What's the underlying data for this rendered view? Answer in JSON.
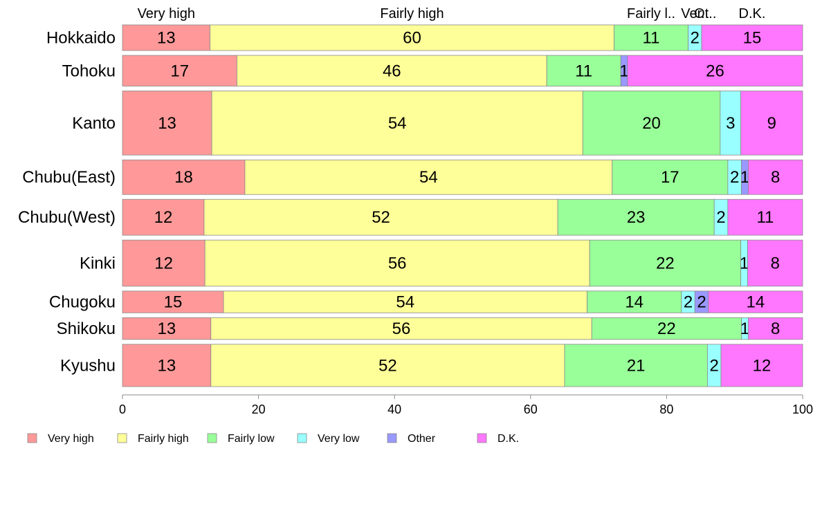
{
  "chart_data": {
    "type": "bar",
    "orientation": "horizontal",
    "stacked": true,
    "title": "",
    "xlabel": "",
    "ylabel": "",
    "xlim": [
      0,
      100
    ],
    "x_ticks": [
      0,
      20,
      40,
      60,
      80,
      100
    ],
    "grid": false,
    "legend_position": "bottom",
    "categories": [
      "Hokkaido",
      "Tohoku",
      "Kanto",
      "Chubu(East)",
      "Chubu(West)",
      "Kinki",
      "Chugoku",
      "Shikoku",
      "Kyushu"
    ],
    "relative_widths": [
      1.0,
      1.2,
      2.5,
      1.35,
      1.4,
      1.8,
      0.85,
      0.85,
      1.65
    ],
    "series": [
      {
        "name": "Very high",
        "color": "#FF9999",
        "values": [
          13,
          17,
          13,
          18,
          12,
          12,
          15,
          13,
          13
        ],
        "labels": [
          "13",
          "17",
          "13",
          "18",
          "12",
          "12",
          "15",
          "13",
          "13"
        ]
      },
      {
        "name": "Fairly high",
        "color": "#FFFF99",
        "values": [
          60,
          46,
          54,
          54,
          52,
          56,
          54,
          56,
          52
        ],
        "labels": [
          "60",
          "46",
          "54",
          "54",
          "52",
          "56",
          "54",
          "56",
          "52"
        ]
      },
      {
        "name": "Fairly low",
        "color": "#99FF99",
        "values": [
          11,
          11,
          20,
          17,
          23,
          22,
          14,
          22,
          21
        ],
        "labels": [
          "11",
          "11",
          "20",
          "17",
          "23",
          "22",
          "14",
          "22",
          "21"
        ]
      },
      {
        "name": "Very low",
        "color": "#99FFFF",
        "values": [
          2,
          0,
          3,
          2,
          2,
          1,
          2,
          1,
          2
        ],
        "labels": [
          "2",
          "",
          "3",
          "2",
          "2",
          "1",
          "2",
          "1",
          "2"
        ]
      },
      {
        "name": "Other",
        "color": "#9999FF",
        "values": [
          0,
          1,
          0,
          1,
          0,
          0,
          2,
          0,
          0
        ],
        "labels": [
          "",
          "1",
          "",
          "1",
          "",
          "",
          "2",
          "",
          ""
        ]
      },
      {
        "name": "D.K.",
        "color": "#FF77FF",
        "values": [
          15,
          26,
          9,
          8,
          11,
          8,
          14,
          8,
          12
        ],
        "labels": [
          "15",
          "26",
          "9",
          "8",
          "11",
          "8",
          "14",
          "8",
          "12"
        ]
      }
    ],
    "top_labels": [
      "Very high",
      "Fairly high",
      "Fairly l..",
      "Ver..",
      "Ot..",
      "D.K."
    ]
  }
}
